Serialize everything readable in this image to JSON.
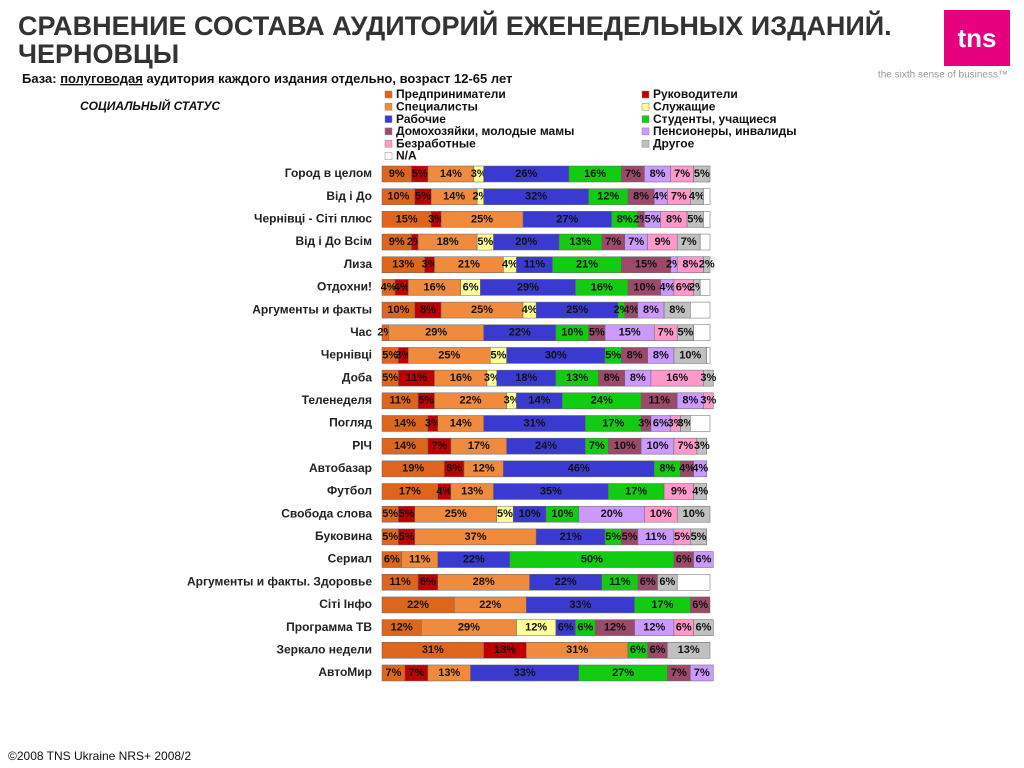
{
  "header": {
    "title_line1": "СРАВНЕНИЕ СОСТАВА АУДИТОРИЙ ЕЖЕНЕДЕЛЬНЫХ ИЗДАНИЙ.",
    "title_line2": "ЧЕРНОВЦЫ",
    "base_prefix": "База: ",
    "base_underlined": "полуговодая",
    "base_rest": " аудитория каждого издания отдельно, возраст 12-65 лет",
    "logo": "tns",
    "tagline": "the sixth sense of business™"
  },
  "footer": "©2008 TNS Ukraine  NRS+ 2008/2",
  "chart_data": {
    "type": "stacked_barh",
    "title": "СОЦИАЛЬНЫЙ СТАТУС",
    "xlim": [
      0,
      100
    ],
    "categories": [
      "Город в целом",
      "Від і До",
      "Чернівці - Сіті плюс",
      "Від і До Всім",
      "Лиза",
      "Отдохни!",
      "Аргументы и факты",
      "Час",
      "Чернівці",
      "Доба",
      "Теленеделя",
      "Погляд",
      "РІЧ",
      "Автобазар",
      "Футбол",
      "Свобода слова",
      "Буковина",
      "Сериал",
      "Аргументы и факты. Здоровье",
      "Сіті Інфо",
      "Программа ТВ",
      "Зеркало недели",
      "АвтоМир"
    ],
    "series": [
      {
        "name": "Предприниматели",
        "color": "#e0651c",
        "values": [
          9,
          10,
          15,
          9,
          13,
          4,
          10,
          2,
          5,
          5,
          11,
          14,
          14,
          19,
          17,
          5,
          5,
          6,
          11,
          22,
          12,
          31,
          7
        ],
        "value_labels": [
          "9%",
          "10%",
          "15%",
          "9%",
          "13%",
          "4%",
          "10%",
          "2%",
          "5%",
          "5%",
          "11%",
          "14%",
          "14%",
          "19%",
          "17%",
          "5%",
          "5%",
          "6%",
          "11%",
          "22%",
          "12%",
          "31%",
          "7%"
        ]
      },
      {
        "name": "Руководители",
        "color": "#c00000",
        "values": [
          5,
          5,
          3,
          2,
          3,
          4,
          8,
          null,
          3,
          11,
          5,
          3,
          7,
          6,
          4,
          5,
          5,
          null,
          6,
          null,
          null,
          13,
          7
        ],
        "value_labels": [
          "5%",
          "5%",
          "3%",
          "2%",
          "3%",
          "4%",
          "8%",
          null,
          "3%",
          "11%",
          "5%",
          "3%",
          "7%",
          "6%",
          "4%",
          "5%",
          "5%",
          null,
          "6%",
          null,
          null,
          "13%",
          "7%"
        ]
      },
      {
        "name": "Специалисты",
        "color": "#f08a3c",
        "values": [
          14,
          14,
          25,
          18,
          21,
          16,
          25,
          29,
          25,
          16,
          22,
          14,
          17,
          12,
          13,
          25,
          37,
          11,
          28,
          22,
          29,
          31,
          13
        ],
        "value_labels": [
          "14%",
          "14%",
          "25%",
          "18%",
          "21%",
          "16%",
          "25%",
          "29%",
          "25%",
          "16%",
          "22%",
          "14%",
          "17%",
          "12%",
          "13%",
          "25%",
          "37%",
          "11%",
          "28%",
          "22%",
          "29%",
          "31%",
          "13%"
        ]
      },
      {
        "name": "Служащие",
        "color": "#ffff99",
        "values": [
          3,
          2,
          null,
          5,
          4,
          6,
          4,
          null,
          5,
          3,
          3,
          null,
          null,
          null,
          null,
          5,
          null,
          null,
          null,
          null,
          12,
          null,
          null
        ],
        "value_labels": [
          "3%",
          "2%",
          null,
          "5%",
          "4%",
          "6%",
          "4%",
          null,
          "5%",
          "3%",
          "3%",
          null,
          null,
          null,
          null,
          "5%",
          null,
          null,
          null,
          null,
          "12%",
          null,
          null
        ]
      },
      {
        "name": "Рабочие",
        "color": "#3a3ad0",
        "values": [
          26,
          32,
          27,
          20,
          11,
          29,
          25,
          22,
          30,
          18,
          14,
          31,
          24,
          46,
          35,
          10,
          21,
          22,
          22,
          33,
          6,
          null,
          33
        ],
        "value_labels": [
          "26%",
          "32%",
          "27%",
          "20%",
          "11%",
          "29%",
          "25%",
          "22%",
          "30%",
          "18%",
          "14%",
          "31%",
          "24%",
          "46%",
          "35%",
          "10%",
          "21%",
          "22%",
          "22%",
          "33%",
          "6%",
          null,
          "33%"
        ]
      },
      {
        "name": "Студенты, учащиеся",
        "color": "#11cc11",
        "values": [
          16,
          12,
          8,
          13,
          21,
          16,
          2,
          10,
          5,
          13,
          24,
          17,
          7,
          8,
          17,
          10,
          5,
          50,
          11,
          17,
          6,
          6,
          27
        ],
        "value_labels": [
          "16%",
          "12%",
          "8%",
          "13%",
          "21%",
          "16%",
          "2%",
          "10%",
          "5%",
          "13%",
          "24%",
          "17%",
          "7%",
          "8%",
          "17%",
          "10%",
          "5%",
          "50%",
          "11%",
          "17%",
          "6%",
          "6%",
          "27%"
        ]
      },
      {
        "name": "Домохозяйки, молодые мамы",
        "color": "#9c4a6a",
        "values": [
          7,
          8,
          2,
          7,
          15,
          10,
          4,
          5,
          8,
          8,
          11,
          3,
          10,
          4,
          null,
          null,
          5,
          6,
          6,
          6,
          12,
          6,
          7
        ],
        "value_labels": [
          "7%",
          "8%",
          "2%",
          "7%",
          "15%",
          "10%",
          "4%",
          "5%",
          "8%",
          "8%",
          "11%",
          "3%",
          "10%",
          "4%",
          null,
          null,
          "5%",
          "6%",
          "6%",
          "6%",
          "12%",
          "6%",
          "7%"
        ]
      },
      {
        "name": "Пенсионеры, инвалиды",
        "color": "#cc99ff",
        "values": [
          8,
          4,
          5,
          7,
          2,
          4,
          8,
          15,
          8,
          8,
          8,
          6,
          10,
          4,
          null,
          20,
          11,
          6,
          null,
          null,
          12,
          null,
          7
        ],
        "value_labels": [
          "8%",
          "4%",
          "5%",
          "7%",
          "2%",
          "4%",
          "8%",
          "15%",
          "8%",
          "8%",
          "8%",
          "6%",
          "10%",
          "4%",
          null,
          "20%",
          "11%",
          "6%",
          null,
          null,
          "12%",
          null,
          "7%"
        ]
      },
      {
        "name": "Безработные",
        "color": "#ff99cc",
        "values": [
          7,
          7,
          8,
          9,
          8,
          6,
          null,
          7,
          null,
          16,
          3,
          3,
          7,
          null,
          9,
          10,
          5,
          null,
          null,
          null,
          6,
          null,
          null
        ],
        "value_labels": [
          "7%",
          "7%",
          "8%",
          "9%",
          "8%",
          "6%",
          null,
          "7%",
          null,
          "16%",
          "3%",
          "3%",
          "7%",
          null,
          "9%",
          "10%",
          "5%",
          null,
          null,
          null,
          "6%",
          null,
          null
        ]
      },
      {
        "name": "Другое",
        "color": "#c0c0c0",
        "values": [
          5,
          4,
          5,
          7,
          2,
          2,
          8,
          5,
          10,
          3,
          null,
          3,
          3,
          null,
          4,
          10,
          5,
          null,
          6,
          null,
          6,
          13,
          null
        ],
        "value_labels": [
          "5%",
          "4%",
          "5%",
          "7%",
          "2%",
          "2%",
          "8%",
          "5%",
          "10%",
          "3%",
          null,
          "3%",
          "3%",
          null,
          "4%",
          "10%",
          "5%",
          null,
          "6%",
          null,
          "6%",
          "13%",
          null
        ]
      },
      {
        "name": "N/A",
        "color": "#ffffff",
        "values": [
          null,
          2,
          2,
          3,
          null,
          3,
          6,
          5,
          1,
          null,
          null,
          6,
          null,
          null,
          null,
          null,
          null,
          null,
          10,
          null,
          null,
          null,
          null
        ]
      }
    ]
  }
}
